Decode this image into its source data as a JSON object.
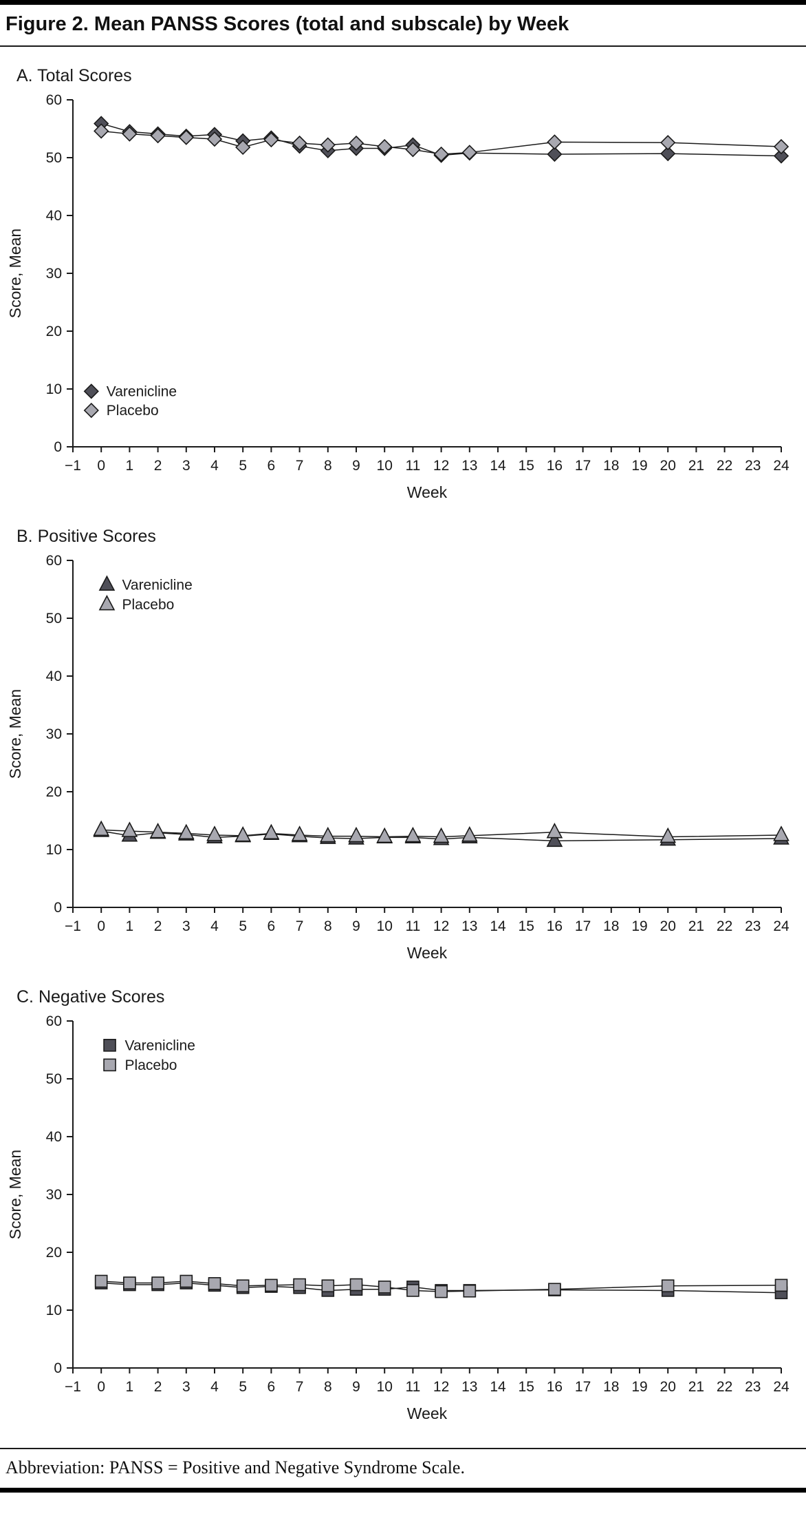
{
  "header": {
    "title": "Figure 2. Mean PANSS Scores (total and subscale) by Week"
  },
  "footer": {
    "abbreviation": "Abbreviation: PANSS = Positive and Negative Syndrome Scale."
  },
  "colors": {
    "varenicline": "#4f4f58",
    "placebo": "#a8a8b0",
    "axis": "#1a1a1a"
  },
  "chart_data": [
    {
      "id": "total-scores",
      "type": "line",
      "panel_label": "A. Total Scores",
      "marker": "diamond",
      "xlabel": "Week",
      "ylabel": "Score, Mean",
      "xlim": [
        -1,
        24
      ],
      "ylim": [
        0,
        60
      ],
      "xticks": [
        -1,
        0,
        1,
        2,
        3,
        4,
        5,
        6,
        7,
        8,
        9,
        10,
        11,
        12,
        13,
        14,
        15,
        16,
        17,
        18,
        19,
        20,
        21,
        22,
        23,
        24
      ],
      "yticks": [
        0,
        10,
        20,
        30,
        40,
        50,
        60
      ],
      "grid": false,
      "legend": {
        "position": "bottom-left",
        "x": -0.35,
        "ys": [
          9.6,
          6.3
        ]
      },
      "x": [
        0,
        1,
        2,
        3,
        4,
        5,
        6,
        7,
        8,
        9,
        10,
        11,
        12,
        13,
        16,
        20,
        24
      ],
      "series": [
        {
          "name": "Varenicline",
          "color": "#4f4f58",
          "values": [
            55.9,
            54.5,
            54.1,
            53.7,
            54.0,
            52.9,
            53.4,
            52.0,
            51.2,
            51.6,
            51.6,
            52.2,
            50.4,
            50.8,
            50.6,
            50.7,
            50.3
          ]
        },
        {
          "name": "Placebo",
          "color": "#a8a8b0",
          "values": [
            54.6,
            54.1,
            53.8,
            53.5,
            53.2,
            51.8,
            53.1,
            52.5,
            52.2,
            52.5,
            51.9,
            51.4,
            50.6,
            50.9,
            52.7,
            52.6,
            51.9
          ]
        }
      ]
    },
    {
      "id": "positive-scores",
      "type": "line",
      "panel_label": "B. Positive Scores",
      "marker": "triangle",
      "xlabel": "Week",
      "ylabel": "Score, Mean",
      "xlim": [
        -1,
        24
      ],
      "ylim": [
        0,
        60
      ],
      "xticks": [
        -1,
        0,
        1,
        2,
        3,
        4,
        5,
        6,
        7,
        8,
        9,
        10,
        11,
        12,
        13,
        14,
        15,
        16,
        17,
        18,
        19,
        20,
        21,
        22,
        23,
        24
      ],
      "yticks": [
        0,
        10,
        20,
        30,
        40,
        50,
        60
      ],
      "grid": false,
      "legend": {
        "position": "top-left",
        "x": 0.2,
        "ys": [
          55.8,
          52.4
        ]
      },
      "x": [
        0,
        1,
        2,
        3,
        4,
        5,
        6,
        7,
        8,
        9,
        10,
        11,
        12,
        13,
        16,
        20,
        24
      ],
      "series": [
        {
          "name": "Varenicline",
          "color": "#4f4f58",
          "values": [
            13.2,
            12.4,
            12.9,
            12.6,
            12.1,
            12.3,
            12.7,
            12.3,
            12.0,
            11.9,
            12.1,
            12.1,
            11.8,
            12.1,
            11.5,
            11.7,
            11.9
          ]
        },
        {
          "name": "Placebo",
          "color": "#a8a8b0",
          "values": [
            13.4,
            13.2,
            13.0,
            12.8,
            12.5,
            12.4,
            12.8,
            12.5,
            12.3,
            12.3,
            12.2,
            12.3,
            12.2,
            12.4,
            13.0,
            12.2,
            12.5
          ]
        }
      ]
    },
    {
      "id": "negative-scores",
      "type": "line",
      "panel_label": "C. Negative Scores",
      "marker": "square",
      "xlabel": "Week",
      "ylabel": "Score, Mean",
      "xlim": [
        -1,
        24
      ],
      "ylim": [
        0,
        60
      ],
      "xticks": [
        -1,
        0,
        1,
        2,
        3,
        4,
        5,
        6,
        7,
        8,
        9,
        10,
        11,
        12,
        13,
        14,
        15,
        16,
        17,
        18,
        19,
        20,
        21,
        22,
        23,
        24
      ],
      "yticks": [
        0,
        10,
        20,
        30,
        40,
        50,
        60
      ],
      "grid": false,
      "legend": {
        "position": "top-left",
        "x": 0.3,
        "ys": [
          55.8,
          52.4
        ]
      },
      "x": [
        0,
        1,
        2,
        3,
        4,
        5,
        6,
        7,
        8,
        9,
        10,
        11,
        12,
        13,
        16,
        20,
        24
      ],
      "series": [
        {
          "name": "Varenicline",
          "color": "#4f4f58",
          "values": [
            14.7,
            14.4,
            14.4,
            14.7,
            14.3,
            13.9,
            14.1,
            13.9,
            13.4,
            13.6,
            13.6,
            14.0,
            13.4,
            13.4,
            13.5,
            13.4,
            13.0
          ]
        },
        {
          "name": "Placebo",
          "color": "#a8a8b0",
          "values": [
            15.0,
            14.7,
            14.7,
            15.0,
            14.6,
            14.2,
            14.3,
            14.4,
            14.2,
            14.4,
            14.0,
            13.4,
            13.2,
            13.3,
            13.6,
            14.2,
            14.3
          ]
        }
      ]
    }
  ]
}
